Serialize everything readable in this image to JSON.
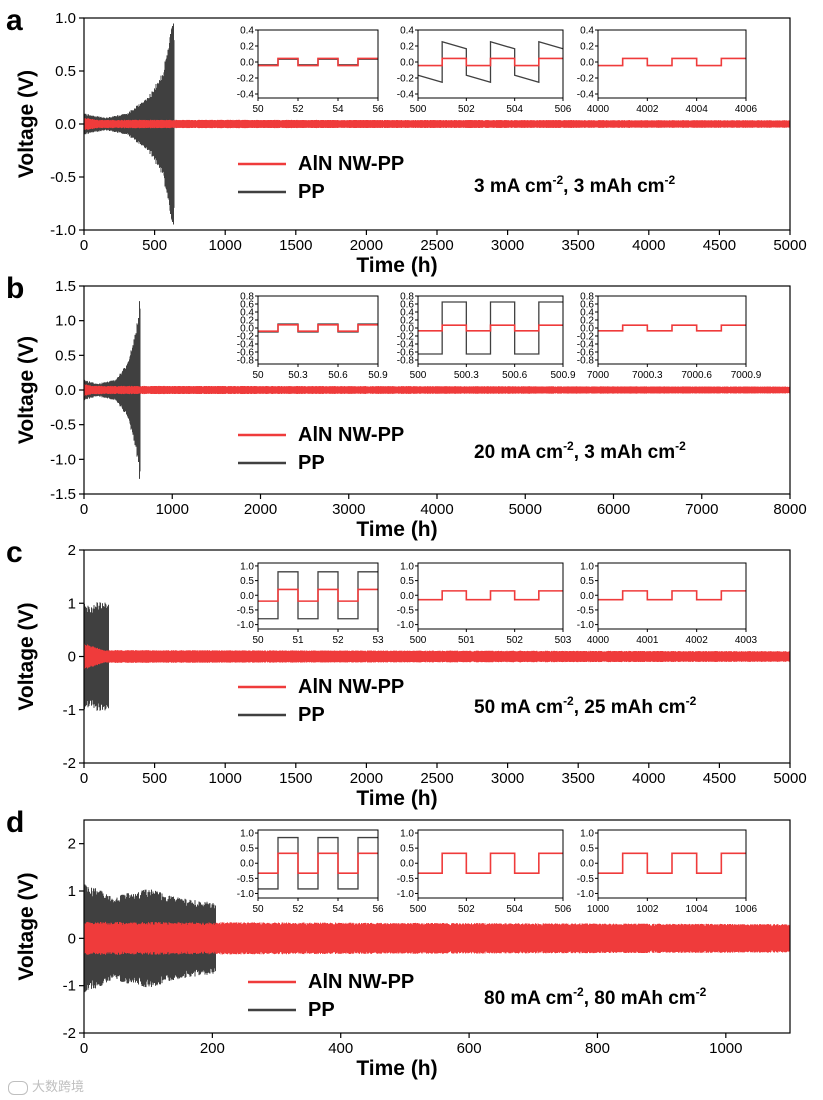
{
  "chart_data": [
    {
      "type": "line",
      "panel_label": "a",
      "title": "",
      "xlabel": "Time (h)",
      "ylabel": "Voltage (V)",
      "xlim": [
        0,
        5000
      ],
      "ylim": [
        -1.0,
        1.0
      ],
      "xticks": [
        0,
        500,
        1000,
        1500,
        2000,
        2500,
        3000,
        3500,
        4000,
        4500,
        5000
      ],
      "yticks": [
        -1.0,
        -0.5,
        0.0,
        0.5,
        1.0
      ],
      "ytick_labels": [
        "-1.0",
        "-0.5",
        "0.0",
        "0.5",
        "1.0"
      ],
      "condition": "3 mA cm⁻², 3 mAh cm⁻²",
      "series": [
        {
          "name": "AlN NW-PP",
          "color": "#ef3b3b",
          "end_time": 5000,
          "amplitude": [
            [
              0,
              0.06
            ],
            [
              100,
              0.04
            ],
            [
              5000,
              0.035
            ]
          ]
        },
        {
          "name": "PP",
          "color": "#404040",
          "end_time": 640,
          "amplitude": [
            [
              0,
              0.1
            ],
            [
              150,
              0.06
            ],
            [
              300,
              0.1
            ],
            [
              450,
              0.25
            ],
            [
              560,
              0.5
            ],
            [
              620,
              0.9
            ],
            [
              640,
              1.0
            ]
          ]
        }
      ],
      "insets": [
        {
          "xlim": [
            50,
            56
          ],
          "xticks": [
            50,
            52,
            54,
            56
          ],
          "ylim": [
            -0.45,
            0.4
          ],
          "yticks": [
            -0.4,
            -0.2,
            0.0,
            0.2,
            0.4
          ],
          "ytick_labels": [
            "-0.4",
            "-0.2",
            "0.0",
            "0.2",
            "0.4"
          ],
          "red_amp": 0.045,
          "gray_amp": 0.035,
          "gray_style": "flat"
        },
        {
          "xlim": [
            500,
            506
          ],
          "xticks": [
            500,
            502,
            504,
            506
          ],
          "ylim": [
            -0.45,
            0.4
          ],
          "yticks": [
            -0.4,
            -0.2,
            0.0,
            0.2,
            0.4
          ],
          "ytick_labels": [
            "-0.4",
            "-0.2",
            "0.0",
            "0.2",
            "0.4"
          ],
          "red_amp": 0.045,
          "gray_amp": 0.22,
          "gray_style": "decay"
        },
        {
          "xlim": [
            4000,
            4006
          ],
          "xticks": [
            4000,
            4002,
            4004,
            4006
          ],
          "ylim": [
            -0.45,
            0.4
          ],
          "yticks": [
            -0.4,
            -0.2,
            0.0,
            0.2,
            0.4
          ],
          "ytick_labels": [
            "-0.4",
            "-0.2",
            "0.0",
            "0.2",
            "0.4"
          ],
          "red_amp": 0.045,
          "gray_amp": 0,
          "gray_style": "none"
        }
      ]
    },
    {
      "type": "line",
      "panel_label": "b",
      "title": "",
      "xlabel": "Time (h)",
      "ylabel": "Voltage (V)",
      "xlim": [
        0,
        8000
      ],
      "ylim": [
        -1.5,
        1.5
      ],
      "xticks": [
        0,
        1000,
        2000,
        3000,
        4000,
        5000,
        6000,
        7000,
        8000
      ],
      "yticks": [
        -1.5,
        -1.0,
        -0.5,
        0.0,
        0.5,
        1.0,
        1.5
      ],
      "ytick_labels": [
        "-1.5",
        "-1.0",
        "-0.5",
        "0.0",
        "0.5",
        "1.0",
        "1.5"
      ],
      "condition": "20 mA cm⁻², 3 mAh cm⁻²",
      "series": [
        {
          "name": "AlN NW-PP",
          "color": "#ef3b3b",
          "end_time": 8000,
          "amplitude": [
            [
              0,
              0.09
            ],
            [
              100,
              0.06
            ],
            [
              8000,
              0.05
            ]
          ]
        },
        {
          "name": "PP",
          "color": "#404040",
          "end_time": 640,
          "amplitude": [
            [
              0,
              0.15
            ],
            [
              150,
              0.09
            ],
            [
              350,
              0.15
            ],
            [
              500,
              0.4
            ],
            [
              590,
              0.9
            ],
            [
              640,
              1.4
            ]
          ]
        }
      ],
      "insets": [
        {
          "xlim": [
            50,
            50.9
          ],
          "xticks": [
            50,
            50.3,
            50.6,
            50.9
          ],
          "ylim": [
            -0.9,
            0.8
          ],
          "yticks": [
            -0.8,
            -0.6,
            -0.4,
            -0.2,
            0.0,
            0.2,
            0.4,
            0.6,
            0.8
          ],
          "ytick_labels": [
            "-0.8",
            "-0.6",
            "-0.4",
            "-0.2",
            "0.0",
            "0.2",
            "0.4",
            "0.6",
            "0.8"
          ],
          "red_amp": 0.08,
          "gray_amp": 0.1,
          "gray_style": "flat"
        },
        {
          "xlim": [
            500,
            500.9
          ],
          "xticks": [
            500,
            500.3,
            500.6,
            500.9
          ],
          "ylim": [
            -0.9,
            0.8
          ],
          "yticks": [
            -0.8,
            -0.6,
            -0.4,
            -0.2,
            0.0,
            0.2,
            0.4,
            0.6,
            0.8
          ],
          "ytick_labels": [
            "-0.8",
            "-0.6",
            "-0.4",
            "-0.2",
            "0.0",
            "0.2",
            "0.4",
            "0.6",
            "0.8"
          ],
          "red_amp": 0.07,
          "gray_amp": 0.65,
          "gray_style": "flat"
        },
        {
          "xlim": [
            7000,
            7000.9
          ],
          "xticks": [
            7000,
            7000.3,
            7000.6,
            7000.9
          ],
          "ylim": [
            -0.9,
            0.8
          ],
          "yticks": [
            -0.8,
            -0.6,
            -0.4,
            -0.2,
            0.0,
            0.2,
            0.4,
            0.6,
            0.8
          ],
          "ytick_labels": [
            "-0.8",
            "-0.6",
            "-0.4",
            "-0.2",
            "0.0",
            "0.2",
            "0.4",
            "0.6",
            "0.8"
          ],
          "red_amp": 0.07,
          "gray_amp": 0,
          "gray_style": "none"
        }
      ]
    },
    {
      "type": "line",
      "panel_label": "c",
      "title": "",
      "xlabel": "Time (h)",
      "ylabel": "Voltage (V)",
      "xlim": [
        0,
        5000
      ],
      "ylim": [
        -2,
        2
      ],
      "xticks": [
        0,
        500,
        1000,
        1500,
        2000,
        2500,
        3000,
        3500,
        4000,
        4500,
        5000
      ],
      "yticks": [
        -2,
        -1,
        0,
        1,
        2
      ],
      "ytick_labels": [
        "-2",
        "-1",
        "0",
        "1",
        "2"
      ],
      "condition": "50 mA cm⁻², 25 mAh cm⁻²",
      "series": [
        {
          "name": "AlN NW-PP",
          "color": "#ef3b3b",
          "end_time": 5000,
          "amplitude": [
            [
              0,
              0.25
            ],
            [
              150,
              0.12
            ],
            [
              5000,
              0.1
            ]
          ]
        },
        {
          "name": "PP",
          "color": "#404040",
          "end_time": 175,
          "amplitude": [
            [
              0,
              1.0
            ],
            [
              40,
              0.95
            ],
            [
              100,
              1.05
            ],
            [
              175,
              1.0
            ]
          ]
        }
      ],
      "insets": [
        {
          "xlim": [
            50,
            53
          ],
          "xticks": [
            50,
            51,
            52,
            53
          ],
          "ylim": [
            -1.15,
            1.1
          ],
          "yticks": [
            -1.0,
            -0.5,
            0.0,
            0.5,
            1.0
          ],
          "ytick_labels": [
            "-1.0",
            "-0.5",
            "0.0",
            "0.5",
            "1.0"
          ],
          "red_amp": 0.2,
          "gray_amp": 0.8,
          "gray_style": "flat"
        },
        {
          "xlim": [
            500,
            503
          ],
          "xticks": [
            500,
            501,
            502,
            503
          ],
          "ylim": [
            -1.15,
            1.1
          ],
          "yticks": [
            -1.0,
            -0.5,
            0.0,
            0.5,
            1.0
          ],
          "ytick_labels": [
            "-1.0",
            "-0.5",
            "0.0",
            "0.5",
            "1.0"
          ],
          "red_amp": 0.15,
          "gray_amp": 0,
          "gray_style": "none"
        },
        {
          "xlim": [
            4000,
            4003
          ],
          "xticks": [
            4000,
            4001,
            4002,
            4003
          ],
          "ylim": [
            -1.15,
            1.1
          ],
          "yticks": [
            -1.0,
            -0.5,
            0.0,
            0.5,
            1.0
          ],
          "ytick_labels": [
            "-1.0",
            "-0.5",
            "0.0",
            "0.5",
            "1.0"
          ],
          "red_amp": 0.15,
          "gray_amp": 0,
          "gray_style": "none"
        }
      ]
    },
    {
      "type": "line",
      "panel_label": "d",
      "title": "",
      "xlabel": "Time (h)",
      "ylabel": "Voltage (V)",
      "xlim": [
        0,
        1100
      ],
      "ylim": [
        -2,
        2.5
      ],
      "xticks": [
        0,
        200,
        400,
        600,
        800,
        1000
      ],
      "yticks": [
        -2,
        -1,
        0,
        1,
        2
      ],
      "ytick_labels": [
        "-2",
        "-1",
        "0",
        "1",
        "2"
      ],
      "condition": "80 mA cm⁻², 80 mAh cm⁻²",
      "series": [
        {
          "name": "AlN NW-PP",
          "color": "#ef3b3b",
          "end_time": 1100,
          "amplitude": [
            [
              0,
              0.35
            ],
            [
              1100,
              0.3
            ]
          ]
        },
        {
          "name": "PP",
          "color": "#404040",
          "end_time": 205,
          "amplitude": [
            [
              0,
              1.15
            ],
            [
              50,
              0.9
            ],
            [
              100,
              1.05
            ],
            [
              150,
              0.85
            ],
            [
              205,
              0.75
            ]
          ]
        }
      ],
      "insets": [
        {
          "xlim": [
            50,
            56
          ],
          "xticks": [
            50,
            52,
            54,
            56
          ],
          "ylim": [
            -1.15,
            1.1
          ],
          "yticks": [
            -1.0,
            -0.5,
            0.0,
            0.5,
            1.0
          ],
          "ytick_labels": [
            "-1.0",
            "-0.5",
            "0.0",
            "0.5",
            "1.0"
          ],
          "red_amp": 0.33,
          "gray_amp": 0.85,
          "gray_style": "flat"
        },
        {
          "xlim": [
            500,
            506
          ],
          "xticks": [
            500,
            502,
            504,
            506
          ],
          "ylim": [
            -1.15,
            1.1
          ],
          "yticks": [
            -1.0,
            -0.5,
            0.0,
            0.5,
            1.0
          ],
          "ytick_labels": [
            "-1.0",
            "-0.5",
            "0.0",
            "0.5",
            "1.0"
          ],
          "red_amp": 0.33,
          "gray_amp": 0,
          "gray_style": "none"
        },
        {
          "xlim": [
            1000,
            1006
          ],
          "xticks": [
            1000,
            1002,
            1004,
            1006
          ],
          "ylim": [
            -1.15,
            1.1
          ],
          "yticks": [
            -1.0,
            -0.5,
            0.0,
            0.5,
            1.0
          ],
          "ytick_labels": [
            "-1.0",
            "-0.5",
            "0.0",
            "0.5",
            "1.0"
          ],
          "red_amp": 0.33,
          "gray_amp": 0,
          "gray_style": "none"
        }
      ]
    }
  ],
  "watermark": "大数跨境"
}
